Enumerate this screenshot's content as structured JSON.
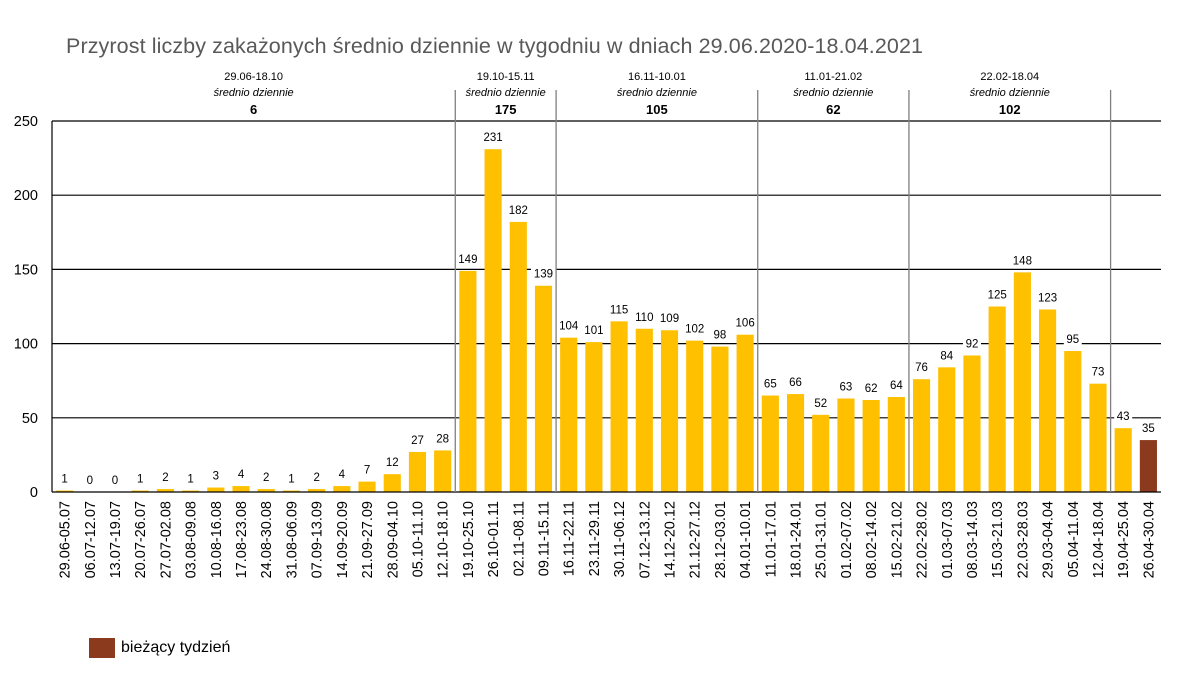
{
  "chart_data": {
    "type": "bar",
    "title": "Przyrost liczby zakażonych średnio dziennie w tygodniu w dniach 29.06.2020-18.04.2021",
    "xlabel": "",
    "ylabel": "",
    "ylim": [
      0,
      250
    ],
    "yticks": [
      0,
      50,
      100,
      150,
      200,
      250
    ],
    "grid": true,
    "categories": [
      "29.06-05.07",
      "06.07-12.07",
      "13.07-19.07",
      "20.07-26.07",
      "27.07-02.08",
      "03.08-09.08",
      "10.08-16.08",
      "17.08-23.08",
      "24.08-30.08",
      "31.08-06.09",
      "07.09-13.09",
      "14.09-20.09",
      "21.09-27.09",
      "28.09-04.10",
      "05.10-11.10",
      "12.10-18.10",
      "19.10-25.10",
      "26.10-01.11",
      "02.11-08.11",
      "09.11-15.11",
      "16.11-22.11",
      "23.11-29.11",
      "30.11-06.12",
      "07.12-13.12",
      "14.12-20.12",
      "21.12-27.12",
      "28.12-03.01",
      "04.01-10.01",
      "11.01-17.01",
      "18.01-24.01",
      "25.01-31.01",
      "01.02-07.02",
      "08.02-14.02",
      "15.02-21.02",
      "22.02-28.02",
      "01.03-07.03",
      "08.03-14.03",
      "15.03-21.03",
      "22.03-28.03",
      "29.03-04.04",
      "05.04-11.04",
      "12.04-18.04",
      "19.04-25.04",
      "26.04-30.04"
    ],
    "values": [
      1,
      0,
      0,
      1,
      2,
      1,
      3,
      4,
      2,
      1,
      2,
      4,
      7,
      12,
      27,
      28,
      149,
      231,
      182,
      139,
      104,
      101,
      115,
      110,
      109,
      102,
      98,
      106,
      65,
      66,
      52,
      63,
      62,
      64,
      76,
      84,
      92,
      125,
      148,
      123,
      95,
      73,
      43,
      35
    ],
    "colors": {
      "bar": "#ffc000",
      "current_week": "#8b3a1e"
    },
    "current_week_index": 43,
    "periods": [
      {
        "range": "29.06-18.10",
        "label": "średnio dziennie",
        "avg": "6",
        "start": 0,
        "end": 15
      },
      {
        "range": "19.10-15.11",
        "label": "średnio dziennie",
        "avg": "175",
        "start": 16,
        "end": 19
      },
      {
        "range": "16.11-10.01",
        "label": "średnio dziennie",
        "avg": "105",
        "start": 20,
        "end": 27
      },
      {
        "range": "11.01-21.02",
        "label": "średnio dziennie",
        "avg": "62",
        "start": 28,
        "end": 33
      },
      {
        "range": "22.02-18.04",
        "label": "średnio dziennie",
        "avg": "102",
        "start": 34,
        "end": 41
      }
    ],
    "legend": {
      "label": "bieżący tydzień",
      "position": "bottom-left"
    }
  }
}
